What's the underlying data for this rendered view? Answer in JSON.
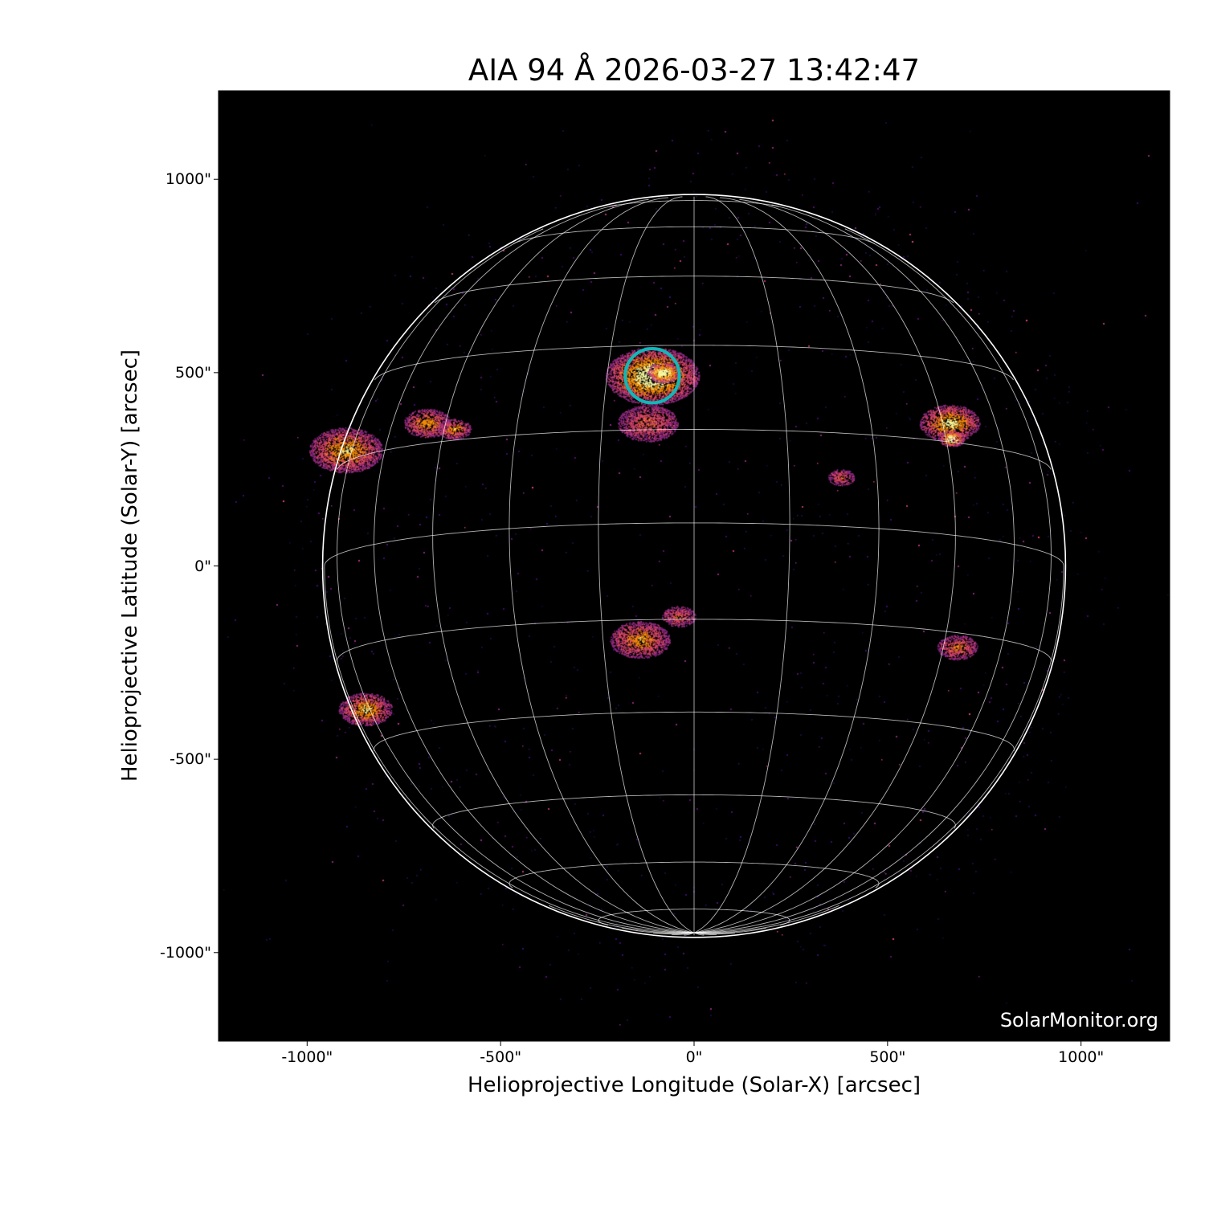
{
  "chart_data": {
    "type": "image",
    "title": "AIA 94 Å 2026-03-27 13:42:47",
    "xlabel": "Helioprojective Longitude (Solar-X) [arcsec]",
    "ylabel": "Helioprojective Latitude (Solar-Y) [arcsec]",
    "xlim": [
      -1229,
      1229
    ],
    "ylim": [
      -1229,
      1229
    ],
    "xticks": [
      {
        "value": -1000,
        "label": "-1000\""
      },
      {
        "value": -500,
        "label": "-500\""
      },
      {
        "value": 0,
        "label": "0\""
      },
      {
        "value": 500,
        "label": "500\""
      },
      {
        "value": 1000,
        "label": "1000\""
      }
    ],
    "yticks": [
      {
        "value": 1000,
        "label": "1000\""
      },
      {
        "value": 500,
        "label": "500\""
      },
      {
        "value": 0,
        "label": "0\""
      },
      {
        "value": -500,
        "label": "-500\""
      },
      {
        "value": -1000,
        "label": "-1000\""
      }
    ],
    "colormap": "inferno",
    "solar_radius_arcsec": 960,
    "heliographic_grid": {
      "spacing_deg": 15,
      "color": "#ffffff",
      "b0_deg": -6.7
    },
    "marker": {
      "shape": "circle",
      "center": [
        -108,
        492
      ],
      "radius_arcsec": 70,
      "color": "#10b8b8"
    },
    "watermark": "SolarMonitor.org"
  }
}
